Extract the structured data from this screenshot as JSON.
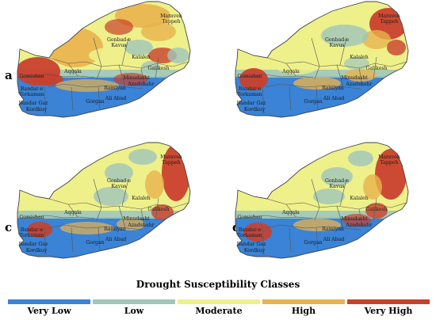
{
  "panels": [
    {
      "letter": "a",
      "districts": [
        "Maraveh Tappeh",
        "Gonbad-e Kavus",
        "Kalaleh",
        "Galikesh",
        "Aqqala",
        "Gomishan",
        "Minudasht",
        "Bandar-e Torkaman",
        "Azadshahr",
        "Ramiyan",
        "Gorgan",
        "Ali Abad",
        "Bandar Gaz",
        "Kordkuy"
      ]
    },
    {
      "letter": "b",
      "districts": [
        "Maraveh Tappeh",
        "Gonbad-e Kavus",
        "Kalaleh",
        "Galikesh",
        "Aqqala",
        "Gomishan",
        "Minudasht",
        "Bandar-e Torkaman",
        "Azadshahr",
        "Ramiyan",
        "Gorgan",
        "Ali Abad",
        "Bandar Gaz",
        "Kordkuy"
      ]
    },
    {
      "letter": "c",
      "districts": [
        "Maraveh Tappeh",
        "Gonbad-e Kavus",
        "Kalaleh",
        "Galikesh",
        "Aqqala",
        "Gomishan",
        "Minudasht",
        "Bandar-e Torkaman",
        "Azadshahr",
        "Ramiyan",
        "Gorgan",
        "Ali Abad",
        "Bandar Gaz",
        "Kordkuy"
      ]
    },
    {
      "letter": "d",
      "districts": [
        "Maraveh Tappeh",
        "Gonbad-e Kavus",
        "Kalaleh",
        "Galikesh",
        "Aqqala",
        "Gomishan",
        "Minudasht",
        "Bandar-e Torkaman",
        "Azadshahr",
        "Ramiyan",
        "Gorgan",
        "Ali Abad",
        "Bandar Gaz",
        "Kordkuy"
      ]
    }
  ],
  "legend": {
    "title": "Drought Susceptibility Classes",
    "classes": [
      {
        "label": "Very Low",
        "color": "#3a83d6"
      },
      {
        "label": "Low",
        "color": "#9fc6ba"
      },
      {
        "label": "Moderate",
        "color": "#eef08a"
      },
      {
        "label": "High",
        "color": "#e9b34d"
      },
      {
        "label": "Very High",
        "color": "#c9402e"
      }
    ]
  }
}
